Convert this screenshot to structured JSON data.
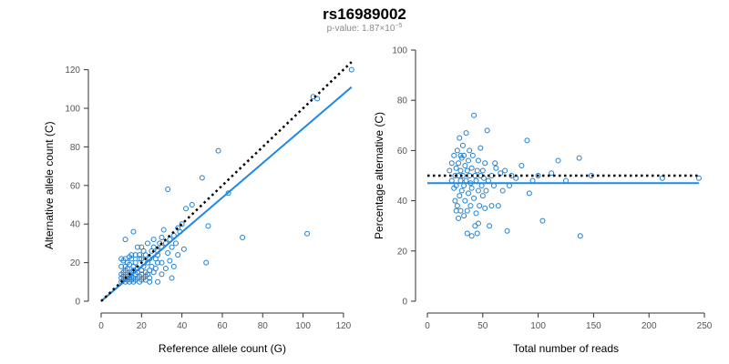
{
  "chart_title": "rs16989002",
  "subtitle": {
    "prefix": "p-value: 1.87×10",
    "exponent": "−5"
  },
  "colors": {
    "points": "#1f7fcf",
    "fit_line": "#1f88e5",
    "reference_line": "#000000",
    "axis": "#333333",
    "tick_label": "#555555"
  },
  "chart_data": [
    {
      "type": "scatter",
      "title": "",
      "xlabel": "Reference allele count (G)",
      "ylabel": "Alternative allele count (C)",
      "xlim": [
        0,
        125
      ],
      "ylim": [
        0,
        125
      ],
      "xticks": [
        0,
        20,
        40,
        60,
        80,
        100,
        120
      ],
      "yticks": [
        0,
        20,
        40,
        60,
        80,
        100,
        120
      ],
      "grid": false,
      "points": [
        [
          10,
          10
        ],
        [
          10,
          12
        ],
        [
          10,
          14
        ],
        [
          11,
          11
        ],
        [
          11,
          13
        ],
        [
          11,
          15
        ],
        [
          12,
          10
        ],
        [
          12,
          12
        ],
        [
          12,
          16
        ],
        [
          12,
          18
        ],
        [
          13,
          11
        ],
        [
          13,
          13
        ],
        [
          13,
          17
        ],
        [
          13,
          20
        ],
        [
          14,
          10
        ],
        [
          14,
          12
        ],
        [
          14,
          14
        ],
        [
          14,
          19
        ],
        [
          15,
          11
        ],
        [
          15,
          13
        ],
        [
          15,
          15
        ],
        [
          15,
          22
        ],
        [
          16,
          10
        ],
        [
          16,
          12
        ],
        [
          16,
          16
        ],
        [
          16,
          18
        ],
        [
          17,
          11
        ],
        [
          17,
          14
        ],
        [
          17,
          20
        ],
        [
          18,
          12
        ],
        [
          18,
          15
        ],
        [
          18,
          17
        ],
        [
          19,
          10
        ],
        [
          19,
          13
        ],
        [
          19,
          22
        ],
        [
          20,
          11
        ],
        [
          20,
          14
        ],
        [
          20,
          16
        ],
        [
          21,
          12
        ],
        [
          21,
          18
        ],
        [
          22,
          13
        ],
        [
          22,
          15
        ],
        [
          23,
          14
        ],
        [
          23,
          20
        ],
        [
          24,
          12
        ],
        [
          24,
          16
        ],
        [
          25,
          18
        ],
        [
          26,
          15
        ],
        [
          27,
          17
        ],
        [
          28,
          20
        ],
        [
          10,
          18
        ],
        [
          10,
          22
        ],
        [
          11,
          21
        ],
        [
          12,
          22
        ],
        [
          14,
          23
        ],
        [
          15,
          24
        ],
        [
          16,
          36
        ],
        [
          17,
          24
        ],
        [
          18,
          28
        ],
        [
          19,
          24
        ],
        [
          20,
          22
        ],
        [
          20,
          28
        ],
        [
          21,
          26
        ],
        [
          22,
          24
        ],
        [
          23,
          30
        ],
        [
          24,
          22
        ],
        [
          25,
          26
        ],
        [
          26,
          28
        ],
        [
          27,
          22
        ],
        [
          28,
          24
        ],
        [
          28,
          26
        ],
        [
          29,
          30
        ],
        [
          30,
          28
        ],
        [
          30,
          33
        ],
        [
          31,
          37
        ],
        [
          32,
          30
        ],
        [
          33,
          25
        ],
        [
          34,
          32
        ],
        [
          35,
          28
        ],
        [
          36,
          34
        ],
        [
          37,
          30
        ],
        [
          38,
          38
        ],
        [
          39,
          36
        ],
        [
          40,
          40
        ],
        [
          42,
          48
        ],
        [
          41,
          27
        ],
        [
          45,
          50
        ],
        [
          12,
          32
        ],
        [
          26,
          32
        ],
        [
          30,
          20
        ],
        [
          32,
          17
        ],
        [
          33,
          58
        ],
        [
          34,
          21
        ],
        [
          36,
          18
        ],
        [
          38,
          24
        ],
        [
          30,
          14
        ],
        [
          35,
          12
        ],
        [
          28,
          10
        ],
        [
          24,
          10
        ],
        [
          22,
          11
        ],
        [
          50,
          64
        ],
        [
          52,
          20
        ],
        [
          53,
          39
        ],
        [
          58,
          78
        ],
        [
          63,
          56
        ],
        [
          70,
          33
        ],
        [
          102,
          35
        ],
        [
          105,
          106
        ],
        [
          107,
          105
        ],
        [
          124,
          120
        ]
      ],
      "series": [
        {
          "kind": "points",
          "marker": "open-circle"
        },
        {
          "kind": "fit-line",
          "style": "solid",
          "from": [
            0,
            0
          ],
          "to": [
            124,
            111
          ]
        },
        {
          "kind": "reference-line",
          "style": "dotted",
          "from": [
            0,
            0
          ],
          "to": [
            124,
            124
          ]
        }
      ]
    },
    {
      "type": "scatter",
      "title": "",
      "xlabel": "Total number of reads",
      "ylabel": "Percentage alternative (C)",
      "xlim": [
        0,
        250
      ],
      "ylim": [
        0,
        100
      ],
      "xticks": [
        0,
        50,
        100,
        150,
        200,
        250
      ],
      "yticks": [
        0,
        20,
        40,
        60,
        80,
        100
      ],
      "grid": false,
      "points": [
        [
          20,
          52
        ],
        [
          22,
          48
        ],
        [
          22,
          55
        ],
        [
          24,
          45
        ],
        [
          24,
          58
        ],
        [
          25,
          50
        ],
        [
          25,
          40
        ],
        [
          26,
          53
        ],
        [
          26,
          46
        ],
        [
          27,
          60
        ],
        [
          27,
          38
        ],
        [
          28,
          50
        ],
        [
          28,
          55
        ],
        [
          29,
          42
        ],
        [
          29,
          65
        ],
        [
          30,
          48
        ],
        [
          30,
          52
        ],
        [
          30,
          36
        ],
        [
          31,
          57
        ],
        [
          31,
          44
        ],
        [
          32,
          50
        ],
        [
          32,
          62
        ],
        [
          33,
          46
        ],
        [
          33,
          34
        ],
        [
          34,
          54
        ],
        [
          34,
          40
        ],
        [
          35,
          48
        ],
        [
          35,
          67
        ],
        [
          36,
          52
        ],
        [
          36,
          27
        ],
        [
          37,
          43
        ],
        [
          37,
          56
        ],
        [
          38,
          50
        ],
        [
          38,
          60
        ],
        [
          39,
          47
        ],
        [
          39,
          38
        ],
        [
          40,
          53
        ],
        [
          40,
          45
        ],
        [
          41,
          58
        ],
        [
          42,
          41
        ],
        [
          42,
          74
        ],
        [
          43,
          50
        ],
        [
          43,
          30
        ],
        [
          44,
          48
        ],
        [
          45,
          52
        ],
        [
          45,
          27
        ],
        [
          46,
          44
        ],
        [
          46,
          56
        ],
        [
          47,
          38
        ],
        [
          48,
          50
        ],
        [
          48,
          61
        ],
        [
          49,
          46
        ],
        [
          50,
          52
        ],
        [
          50,
          42
        ],
        [
          51,
          49
        ],
        [
          52,
          37
        ],
        [
          52,
          55
        ],
        [
          53,
          44
        ],
        [
          54,
          68
        ],
        [
          55,
          48
        ],
        [
          56,
          30
        ],
        [
          58,
          50
        ],
        [
          60,
          46
        ],
        [
          62,
          53
        ],
        [
          64,
          38
        ],
        [
          66,
          51
        ],
        [
          68,
          44
        ],
        [
          70,
          52
        ],
        [
          72,
          28
        ],
        [
          74,
          46
        ],
        [
          76,
          50
        ],
        [
          80,
          49
        ],
        [
          85,
          54
        ],
        [
          90,
          64
        ],
        [
          92,
          43
        ],
        [
          95,
          48
        ],
        [
          100,
          50
        ],
        [
          104,
          32
        ],
        [
          112,
          51
        ],
        [
          118,
          56
        ],
        [
          125,
          48
        ],
        [
          137,
          57
        ],
        [
          138,
          26
        ],
        [
          148,
          50
        ],
        [
          212,
          49
        ],
        [
          245,
          49
        ],
        [
          26,
          36
        ],
        [
          28,
          33
        ],
        [
          30,
          58
        ],
        [
          33,
          58
        ],
        [
          36,
          36
        ],
        [
          40,
          26
        ],
        [
          44,
          35
        ],
        [
          46,
          31
        ],
        [
          58,
          38
        ],
        [
          61,
          55
        ]
      ],
      "series": [
        {
          "kind": "points",
          "marker": "open-circle"
        },
        {
          "kind": "fit-line",
          "style": "solid",
          "from": [
            0,
            47
          ],
          "to": [
            245,
            47
          ]
        },
        {
          "kind": "reference-line",
          "style": "dotted",
          "from": [
            0,
            50
          ],
          "to": [
            245,
            50
          ]
        }
      ]
    }
  ]
}
